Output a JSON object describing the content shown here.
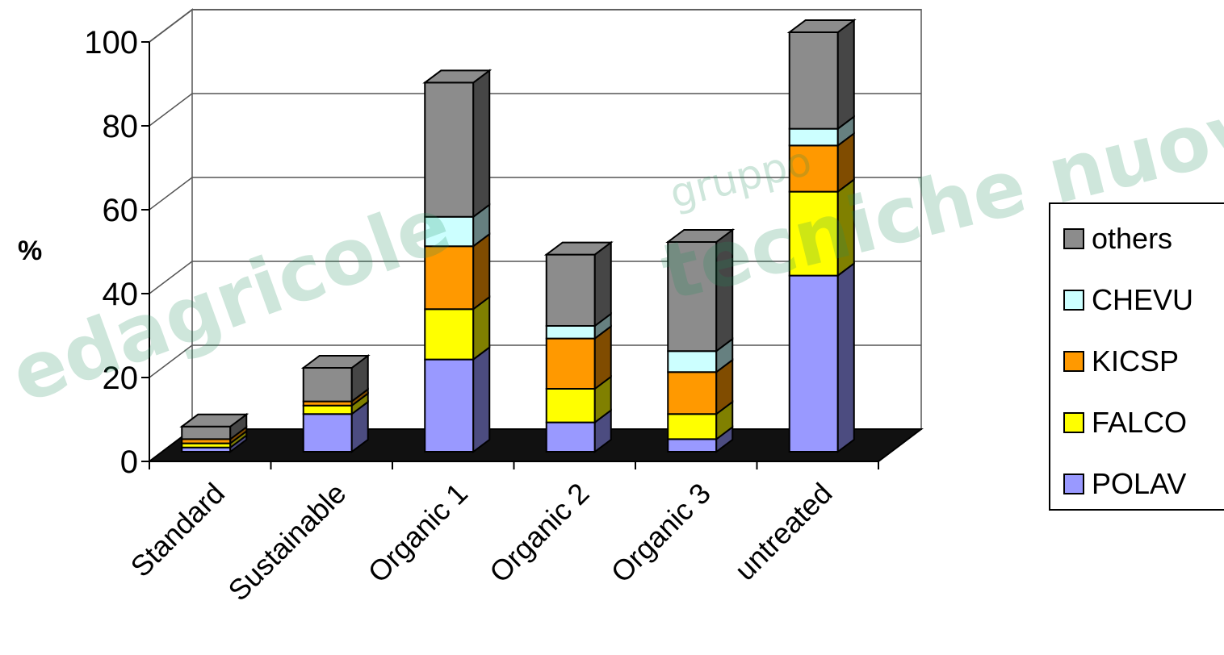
{
  "chart_data": {
    "type": "bar",
    "stacked": true,
    "three_d": true,
    "ylabel": "%",
    "ylim": [
      0,
      100
    ],
    "yticks": [
      0,
      20,
      40,
      60,
      80,
      100
    ],
    "grid": true,
    "legend_position": "right",
    "categories": [
      "Standard",
      "Sustainable",
      "Organic 1",
      "Organic 2",
      "Organic 3",
      "untreated"
    ],
    "series": [
      {
        "name": "POLAV",
        "color": "#9999ff",
        "side_color": "#4c4c80",
        "values": [
          1,
          9,
          22,
          7,
          3,
          42
        ]
      },
      {
        "name": "FALCO",
        "color": "#ffff00",
        "side_color": "#808000",
        "values": [
          1,
          2,
          12,
          8,
          6,
          20
        ]
      },
      {
        "name": "KICSP",
        "color": "#ff9900",
        "side_color": "#804c00",
        "values": [
          1,
          1,
          15,
          12,
          10,
          11
        ]
      },
      {
        "name": "CHEVU",
        "color": "#ccffff",
        "side_color": "#668080",
        "values": [
          0,
          0,
          7,
          3,
          5,
          4
        ]
      },
      {
        "name": "others",
        "color": "#8c8c8c",
        "side_color": "#464646",
        "values": [
          3,
          8,
          32,
          17,
          26,
          23
        ]
      }
    ],
    "legend_order": [
      "others",
      "CHEVU",
      "KICSP",
      "FALCO",
      "POLAV"
    ],
    "watermark": {
      "line1": "edagricole",
      "line2": "gruppo",
      "line3": "tecniche nuove"
    }
  }
}
